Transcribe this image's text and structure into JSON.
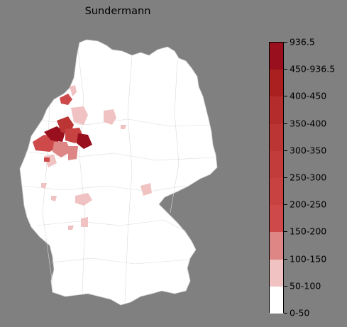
{
  "title": "Sundermann",
  "colors": {
    "background": "#808080",
    "land": "#ffffff",
    "border": "#d3d3d3"
  },
  "legend": {
    "labels": [
      "0-50",
      "50-100",
      "100-150",
      "150-200",
      "200-250",
      "250-300",
      "300-350",
      "350-400",
      "400-450",
      "450-936.5",
      "936.5"
    ],
    "bins": [
      {
        "label": "0-50",
        "color": "#ffffff"
      },
      {
        "label": "50-100",
        "color": "#f0c2c2"
      },
      {
        "label": "100-150",
        "color": "#de8585"
      },
      {
        "label": "150-200",
        "color": "#ce4a4a"
      },
      {
        "label": "200-250",
        "color": "#c84242"
      },
      {
        "label": "250-300",
        "color": "#c23c3c"
      },
      {
        "label": "300-350",
        "color": "#bc3535"
      },
      {
        "label": "350-400",
        "color": "#b42c2c"
      },
      {
        "label": "400-450",
        "color": "#aa2020"
      },
      {
        "label": "450-936.5",
        "color": "#9a0f1e"
      }
    ]
  }
}
